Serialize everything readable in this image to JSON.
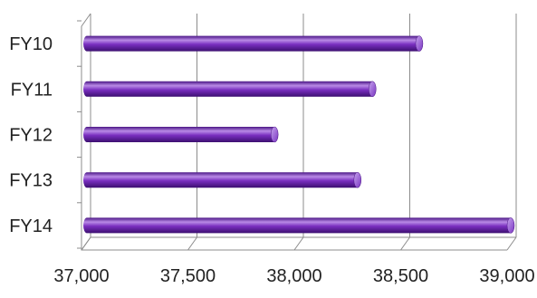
{
  "chart_data": {
    "type": "bar",
    "orientation": "horizontal",
    "style": "3d-cylinder",
    "categories": [
      "FY10",
      "FY11",
      "FY12",
      "FY13",
      "FY14"
    ],
    "series": [
      {
        "values": [
          38570,
          38350,
          37890,
          38280,
          39000
        ]
      }
    ],
    "xlim": [
      37000,
      39000
    ],
    "xticks": [
      "37,000",
      "37,500",
      "38,000",
      "38,500",
      "39,000"
    ],
    "xtick_values": [
      37000,
      37500,
      38000,
      38500,
      39000
    ],
    "grid": true,
    "legend": "none",
    "colors": {
      "bar_main": "#7a2fc0",
      "bar_dark": "#4a1585",
      "bar_light": "#b98ae6",
      "bar_cap": "#9a5ad6",
      "grid": "#8c8c8c"
    }
  }
}
